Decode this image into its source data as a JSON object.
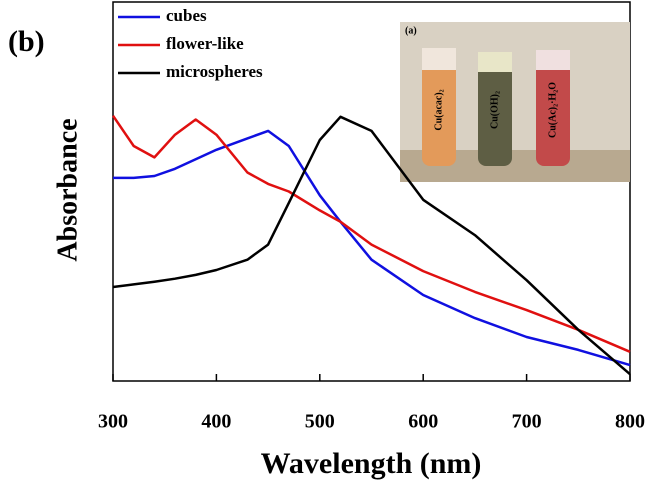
{
  "chart_data": {
    "type": "line",
    "xlabel": "Wavelength (nm)",
    "ylabel": "Absorbance",
    "x": [
      300,
      320,
      340,
      360,
      380,
      400,
      430,
      450,
      470,
      500,
      520,
      550,
      600,
      650,
      700,
      750,
      800
    ],
    "series": [
      {
        "name": "cubes",
        "color": "#1010e0",
        "values": [
          0.536,
          0.536,
          0.541,
          0.56,
          0.585,
          0.61,
          0.64,
          0.66,
          0.62,
          0.49,
          0.42,
          0.32,
          0.227,
          0.166,
          0.116,
          0.082,
          0.042
        ]
      },
      {
        "name": "flower-like",
        "color": "#e01010",
        "values": [
          0.7,
          0.62,
          0.59,
          0.65,
          0.69,
          0.65,
          0.55,
          0.52,
          0.5,
          0.45,
          0.42,
          0.36,
          0.29,
          0.235,
          0.187,
          0.135,
          0.077
        ]
      },
      {
        "name": "microspheres",
        "color": "#000000",
        "values": [
          0.248,
          0.255,
          0.262,
          0.27,
          0.28,
          0.293,
          0.32,
          0.36,
          0.47,
          0.636,
          0.697,
          0.66,
          0.478,
          0.385,
          0.266,
          0.135,
          0.018
        ]
      }
    ],
    "xlim": [
      300,
      800
    ],
    "xticks": [
      300,
      400,
      500,
      600,
      700,
      800
    ],
    "ylim": [
      0,
      1
    ],
    "annotations": [
      "(b)",
      "(a)",
      "Cu(acac)₂",
      "Cu(OH)₂",
      "Cu(Ac)₂·H₂O"
    ]
  }
}
